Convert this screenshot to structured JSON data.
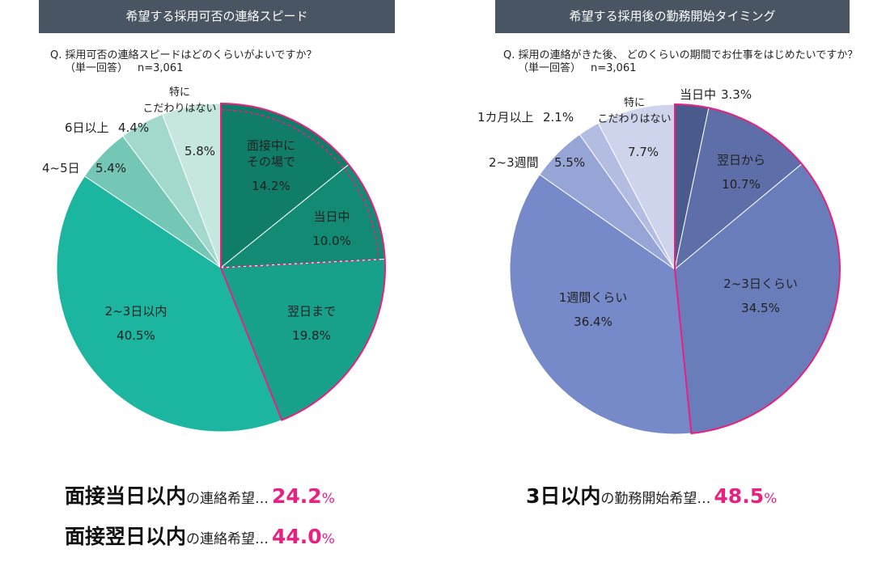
{
  "left": {
    "banner": "希望する採用可否の連絡スピード",
    "question": "Q. 採用可否の連絡スピードはどのくらいがよいですか？",
    "question_sub": "（単一回答）",
    "question_n": "n=3,061"
  },
  "right": {
    "banner": "希望する採用後の勤務開始タイミング",
    "question": "Q. 採用の連絡がきた後、 どのくらいの期間でお仕事をはじめたいですか？",
    "question_sub": "（単一回答）",
    "question_n": "n=3,061"
  },
  "chart_data": [
    {
      "type": "pie",
      "slices": [
        {
          "label": "面接中にその場で",
          "lines": [
            "面接中に",
            "その場で"
          ],
          "value": 14.2,
          "value_text": "14.2%",
          "color": "#107d68",
          "highlight": true
        },
        {
          "label": "当日中",
          "lines": [
            "当日中"
          ],
          "value": 10.0,
          "value_text": "10.0%",
          "color": "#138a73",
          "highlight": true
        },
        {
          "label": "翌日まで",
          "lines": [
            "翌日まで"
          ],
          "value": 19.8,
          "value_text": "19.8%",
          "color": "#17a08a",
          "highlight": true
        },
        {
          "label": "2~3日以内",
          "lines": [
            "2~3日以内"
          ],
          "value": 40.5,
          "value_text": "40.5%",
          "color": "#1cb59f",
          "highlight": false
        },
        {
          "label": "4~5日",
          "lines": [
            "4~5日"
          ],
          "value": 5.4,
          "value_text": "5.4%",
          "color": "#74c6b5",
          "highlight": false
        },
        {
          "label": "6日以上",
          "lines": [
            "6日以上"
          ],
          "value": 4.4,
          "value_text": "4.4%",
          "color": "#a3d9cd",
          "highlight": false
        },
        {
          "label": "特にこだわりはない",
          "lines": [
            "特に",
            "こだわりはない"
          ],
          "value": 5.8,
          "value_text": "5.8%",
          "color": "#c6e7df",
          "highlight": false
        }
      ]
    },
    {
      "type": "pie",
      "slices": [
        {
          "label": "当日中",
          "lines": [
            "当日中"
          ],
          "value": 3.3,
          "value_text": "3.3%",
          "color": "#4a5a8c",
          "highlight": true
        },
        {
          "label": "翌日から",
          "lines": [
            "翌日から"
          ],
          "value": 10.7,
          "value_text": "10.7%",
          "color": "#5d6ea8",
          "highlight": true
        },
        {
          "label": "2~3日くらい",
          "lines": [
            "2~3日くらい"
          ],
          "value": 34.5,
          "value_text": "34.5%",
          "color": "#6a7dbb",
          "highlight": true
        },
        {
          "label": "1週間くらい",
          "lines": [
            "1週間くらい"
          ],
          "value": 36.4,
          "value_text": "36.4%",
          "color": "#7689c8",
          "highlight": false
        },
        {
          "label": "2~3週間",
          "lines": [
            "2~3週間"
          ],
          "value": 5.5,
          "value_text": "5.5%",
          "color": "#97a4d6",
          "highlight": false
        },
        {
          "label": "1カ月以上",
          "lines": [
            "1カ月以上"
          ],
          "value": 2.1,
          "value_text": "2.1%",
          "color": "#b3bde2",
          "highlight": false
        },
        {
          "label": "特にこだわりはない",
          "lines": [
            "特に",
            "こだわりはない"
          ],
          "value": 7.7,
          "value_text": "7.7%",
          "color": "#ced4ec",
          "highlight": false
        }
      ]
    }
  ],
  "summary": [
    {
      "bold": "面接当日以内",
      "normal": "の連絡希望…",
      "value": "24.2",
      "unit": "%"
    },
    {
      "bold": "面接翌日以内",
      "normal": "の連絡希望…",
      "value": "44.0",
      "unit": "%"
    },
    {
      "bold": "3日以内",
      "normal": "の勤務開始希望…",
      "value": "48.5",
      "unit": "%"
    }
  ],
  "colors": {
    "highlight": "#e8207f",
    "banner": "#4a5564"
  }
}
